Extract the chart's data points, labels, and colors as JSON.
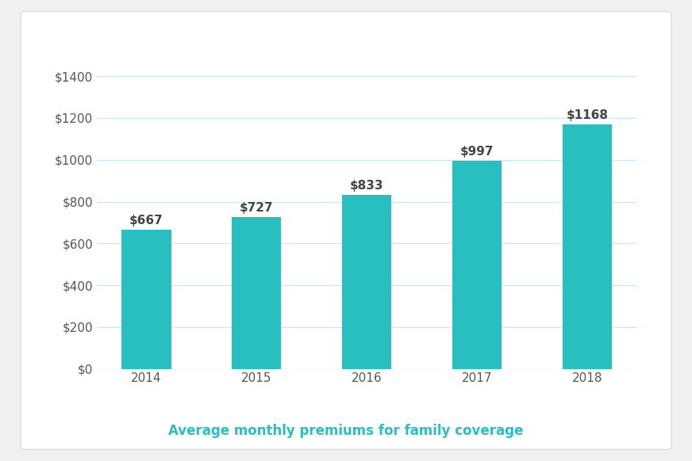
{
  "categories": [
    "2014",
    "2015",
    "2016",
    "2017",
    "2018"
  ],
  "values": [
    667,
    727,
    833,
    997,
    1168
  ],
  "labels": [
    "$667",
    "$727",
    "$833",
    "$997",
    "$1168"
  ],
  "bar_color": "#29bfc0",
  "plot_bg_color": "#ffffff",
  "grid_color": "#c8e8ea",
  "ytick_labels": [
    "$0",
    "$200",
    "$400",
    "$600",
    "$800",
    "$1000",
    "$1200",
    "$1400"
  ],
  "ytick_values": [
    0,
    200,
    400,
    600,
    800,
    1000,
    1200,
    1400
  ],
  "ylim": [
    0,
    1500
  ],
  "subtitle": "Average monthly premiums for family coverage",
  "subtitle_color": "#29bfc0",
  "subtitle_fontsize": 12,
  "tick_label_color": "#555555",
  "bar_label_color": "#444444",
  "bar_label_fontsize": 11,
  "tick_fontsize": 11,
  "bar_width": 0.45,
  "outer_bg_color": "#f0f0f0",
  "card_bg_color": "#ffffff",
  "card_edge_color": "#dddddd"
}
